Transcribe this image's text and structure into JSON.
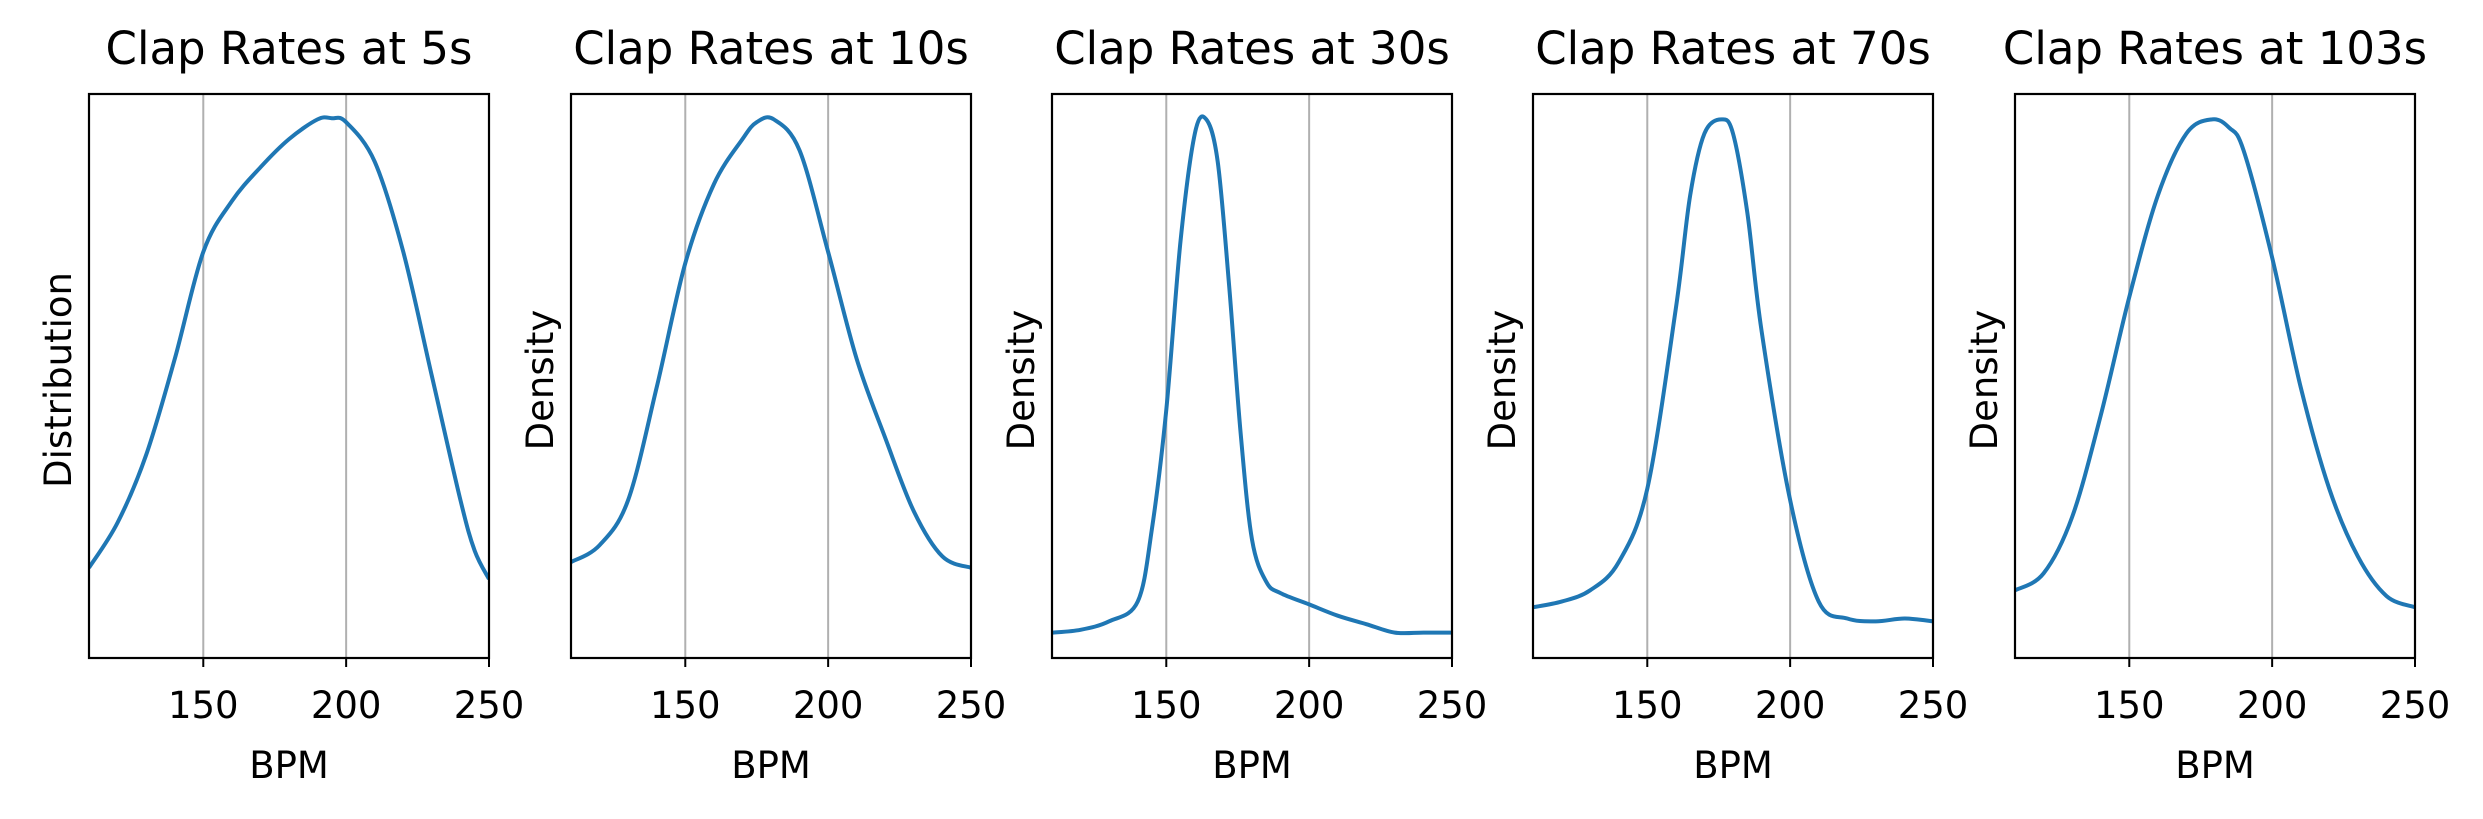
{
  "chart_data": [
    {
      "type": "line",
      "title": "Clap Rates at 5s",
      "xlabel": "BPM",
      "ylabel": "Distribution",
      "xlim": [
        110,
        250
      ],
      "ylim": [
        0,
        1.0
      ],
      "xticks": [
        "150",
        "200",
        "250"
      ],
      "grid": "vertical",
      "series": [
        {
          "color": "#1f77b4",
          "x": [
            110,
            120,
            130,
            140,
            150,
            160,
            170,
            180,
            190,
            195,
            200,
            210,
            220,
            230,
            240,
            245,
            250
          ],
          "y": [
            0.16,
            0.24,
            0.36,
            0.53,
            0.72,
            0.81,
            0.87,
            0.92,
            0.955,
            0.957,
            0.95,
            0.88,
            0.72,
            0.5,
            0.28,
            0.19,
            0.14
          ]
        }
      ]
    },
    {
      "type": "line",
      "title": "Clap Rates at 10s",
      "xlabel": "BPM",
      "ylabel": "Density",
      "xlim": [
        110,
        250
      ],
      "ylim": [
        0,
        1.0
      ],
      "xticks": [
        "150",
        "200",
        "250"
      ],
      "grid": "vertical",
      "series": [
        {
          "color": "#1f77b4",
          "x": [
            110,
            120,
            130,
            140,
            150,
            160,
            170,
            175,
            181,
            190,
            200,
            210,
            220,
            230,
            240,
            250
          ],
          "y": [
            0.17,
            0.2,
            0.28,
            0.48,
            0.7,
            0.84,
            0.92,
            0.95,
            0.955,
            0.9,
            0.72,
            0.53,
            0.39,
            0.26,
            0.18,
            0.16
          ]
        }
      ]
    },
    {
      "type": "line",
      "title": "Clap Rates at 30s",
      "xlabel": "BPM",
      "ylabel": "Density",
      "xlim": [
        110,
        250
      ],
      "ylim": [
        0,
        1.0
      ],
      "xticks": [
        "150",
        "200",
        "250"
      ],
      "grid": "vertical",
      "series": [
        {
          "color": "#1f77b4",
          "x": [
            110,
            120,
            130,
            140,
            145,
            150,
            155,
            160,
            164,
            168,
            172,
            176,
            180,
            185,
            190,
            200,
            210,
            220,
            230,
            240,
            250
          ],
          "y": [
            0.045,
            0.05,
            0.065,
            0.1,
            0.23,
            0.44,
            0.74,
            0.93,
            0.955,
            0.88,
            0.66,
            0.4,
            0.21,
            0.135,
            0.115,
            0.095,
            0.075,
            0.06,
            0.045,
            0.045,
            0.045
          ]
        }
      ]
    },
    {
      "type": "line",
      "title": "Clap Rates at 70s",
      "xlabel": "BPM",
      "ylabel": "Density",
      "xlim": [
        110,
        250
      ],
      "ylim": [
        0,
        1.0
      ],
      "xticks": [
        "150",
        "200",
        "250"
      ],
      "grid": "vertical",
      "series": [
        {
          "color": "#1f77b4",
          "x": [
            110,
            120,
            130,
            140,
            150,
            160,
            165,
            170,
            176,
            180,
            185,
            190,
            200,
            210,
            220,
            230,
            240,
            250
          ],
          "y": [
            0.09,
            0.1,
            0.12,
            0.17,
            0.3,
            0.62,
            0.82,
            0.93,
            0.955,
            0.93,
            0.79,
            0.58,
            0.28,
            0.1,
            0.07,
            0.065,
            0.07,
            0.065
          ]
        }
      ]
    },
    {
      "type": "line",
      "title": "Clap Rates at 103s",
      "xlabel": "BPM",
      "ylabel": "Density",
      "xlim": [
        110,
        250
      ],
      "ylim": [
        0,
        1.0
      ],
      "xticks": [
        "150",
        "200",
        "250"
      ],
      "grid": "vertical",
      "series": [
        {
          "color": "#1f77b4",
          "x": [
            110,
            120,
            130,
            140,
            150,
            160,
            170,
            179,
            185,
            190,
            200,
            210,
            220,
            230,
            240,
            250
          ],
          "y": [
            0.12,
            0.15,
            0.25,
            0.43,
            0.64,
            0.82,
            0.93,
            0.955,
            0.94,
            0.9,
            0.71,
            0.48,
            0.3,
            0.18,
            0.11,
            0.09
          ]
        }
      ]
    }
  ]
}
